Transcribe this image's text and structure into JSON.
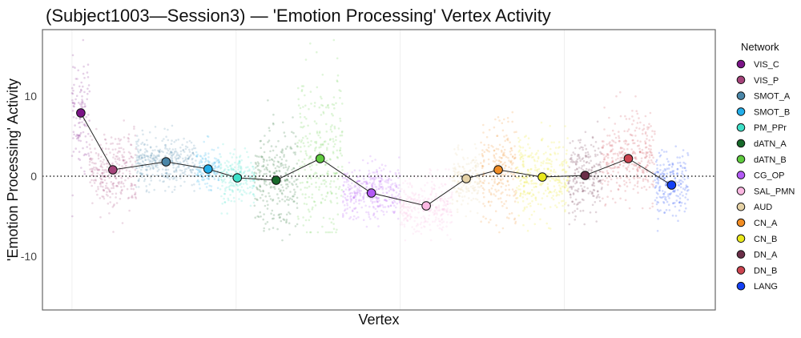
{
  "chart_data": {
    "type": "scatter",
    "title": "(Subject1003—Session3) — 'Emotion Processing' Vertex Activity",
    "xlabel": "Vertex",
    "ylabel": "'Emotion Processing' Activity",
    "ylim": [
      -16.7,
      18.3
    ],
    "xlim": [
      -900,
      19600
    ],
    "yticks": [
      10,
      0,
      -10
    ],
    "ytick_labels": [
      "10",
      "0",
      "-10"
    ],
    "x_gridlines": [
      0,
      5000,
      10000,
      15000
    ],
    "reference_line_y": 0,
    "legend": {
      "title": "Network",
      "placement": "right"
    },
    "series": [
      {
        "name": "VIS_C",
        "color": "#7B1487",
        "x_range": [
          0,
          537
        ],
        "mean": 7.9,
        "sd": 4.0,
        "range": [
          -5,
          17
        ]
      },
      {
        "name": "VIS_P",
        "color": "#A5437A",
        "x_range": [
          537,
          1951
        ],
        "mean": 0.8,
        "sd": 2.2,
        "range": [
          -8,
          10
        ]
      },
      {
        "name": "SMOT_A",
        "color": "#4A86A8",
        "x_range": [
          1951,
          3780
        ],
        "mean": 1.8,
        "sd": 1.5,
        "range": [
          -2,
          7
        ]
      },
      {
        "name": "SMOT_B",
        "color": "#22AEEA",
        "x_range": [
          3780,
          4512
        ],
        "mean": 0.9,
        "sd": 1.3,
        "range": [
          -2,
          5
        ]
      },
      {
        "name": "PM_PPr",
        "color": "#3EE0C8",
        "x_range": [
          4512,
          5561
        ],
        "mean": -0.2,
        "sd": 1.6,
        "range": [
          -6,
          4
        ]
      },
      {
        "name": "dATN_A",
        "color": "#17692A",
        "x_range": [
          5561,
          6878
        ],
        "mean": -0.5,
        "sd": 3.0,
        "range": [
          -8,
          11
        ]
      },
      {
        "name": "dATN_B",
        "color": "#5FCB3F",
        "x_range": [
          6878,
          8244
        ],
        "mean": 2.2,
        "sd": 5.0,
        "range": [
          -7,
          17
        ]
      },
      {
        "name": "CG_OP",
        "color": "#B35AF5",
        "x_range": [
          8244,
          10000
        ],
        "mean": -2.1,
        "sd": 1.6,
        "range": [
          -7,
          3
        ]
      },
      {
        "name": "SAL_PMN",
        "color": "#FBB8E2",
        "x_range": [
          10000,
          11585
        ],
        "mean": -3.7,
        "sd": 1.7,
        "range": [
          -8,
          2
        ]
      },
      {
        "name": "AUD",
        "color": "#E5D2A6",
        "x_range": [
          11585,
          12439
        ],
        "mean": -0.3,
        "sd": 1.6,
        "range": [
          -5,
          4
        ]
      },
      {
        "name": "CN_A",
        "color": "#F28D24",
        "x_range": [
          12439,
          13537
        ],
        "mean": 0.8,
        "sd": 3.0,
        "range": [
          -7,
          9
        ]
      },
      {
        "name": "CN_B",
        "color": "#E9E81C",
        "x_range": [
          13537,
          15122
        ],
        "mean": -0.1,
        "sd": 2.4,
        "range": [
          -7,
          7
        ]
      },
      {
        "name": "DN_A",
        "color": "#6A2E48",
        "x_range": [
          15122,
          16146
        ],
        "mean": 0.1,
        "sd": 2.4,
        "range": [
          -6,
          8
        ]
      },
      {
        "name": "DN_B",
        "color": "#CC4450",
        "x_range": [
          16146,
          17756
        ],
        "mean": 2.2,
        "sd": 2.6,
        "range": [
          -4,
          11
        ]
      },
      {
        "name": "LANG",
        "color": "#1340F5",
        "x_range": [
          17756,
          18780
        ],
        "mean": -1.1,
        "sd": 2.0,
        "range": [
          -7,
          5
        ]
      }
    ]
  }
}
